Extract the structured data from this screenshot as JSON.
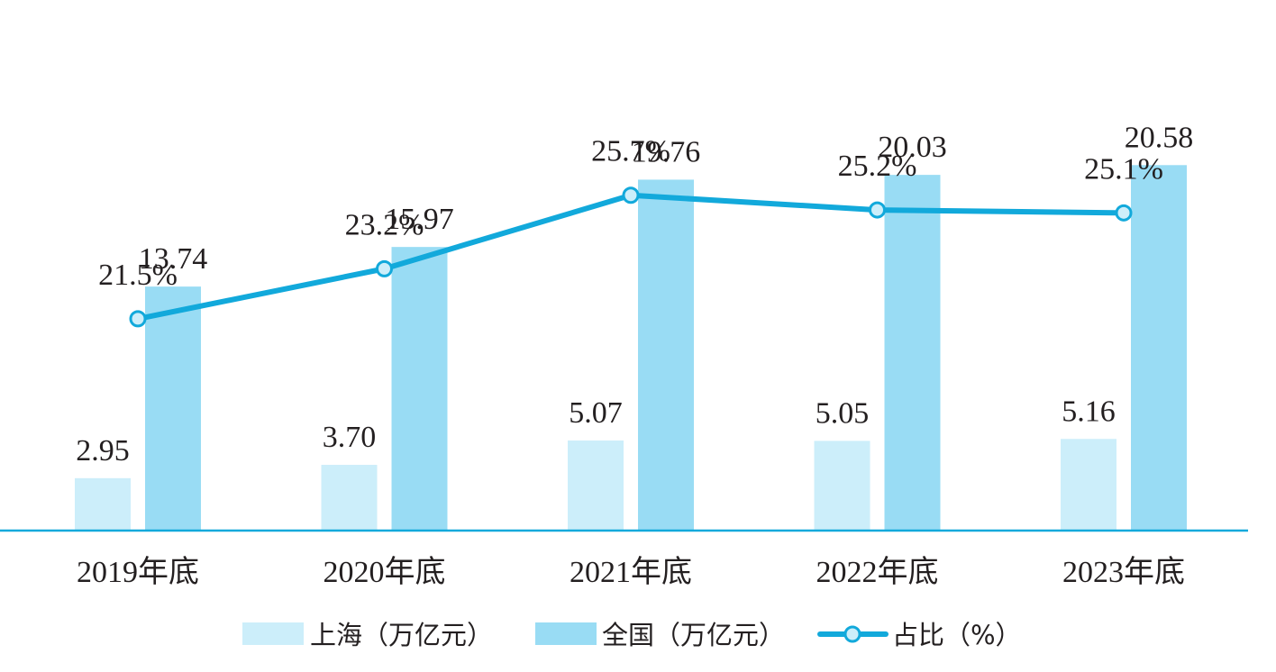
{
  "chart_data": {
    "type": "bar",
    "categories": [
      "2019年底",
      "2020年底",
      "2021年底",
      "2022年底",
      "2023年底"
    ],
    "series": [
      {
        "name": "上海（万亿元）",
        "type": "bar",
        "color": "#cceefa",
        "values": [
          2.95,
          3.7,
          5.07,
          5.05,
          5.16
        ],
        "value_labels": [
          "2.95",
          "3.70",
          "5.07",
          "5.05",
          "5.16"
        ]
      },
      {
        "name": "全国（万亿元）",
        "type": "bar",
        "color": "#99dcf4",
        "values": [
          13.74,
          15.97,
          19.76,
          20.03,
          20.58
        ],
        "value_labels": [
          "13.74",
          "15.97",
          "19.76",
          "20.03",
          "20.58"
        ]
      },
      {
        "name": "占比（%）",
        "type": "line",
        "color": "#12a9db",
        "marker_fill": "#cceefa",
        "axis": "secondary",
        "values": [
          21.5,
          23.2,
          25.7,
          25.2,
          25.1
        ],
        "value_labels": [
          "21.5%",
          "23.2%",
          "25.7%",
          "25.2%",
          "25.1%"
        ]
      }
    ],
    "ylim": [
      0,
      21
    ],
    "y2lim": [
      14.3,
      30.5
    ],
    "grid": false,
    "axis_color": "#12a9db",
    "legend_position": "bottom-center"
  }
}
